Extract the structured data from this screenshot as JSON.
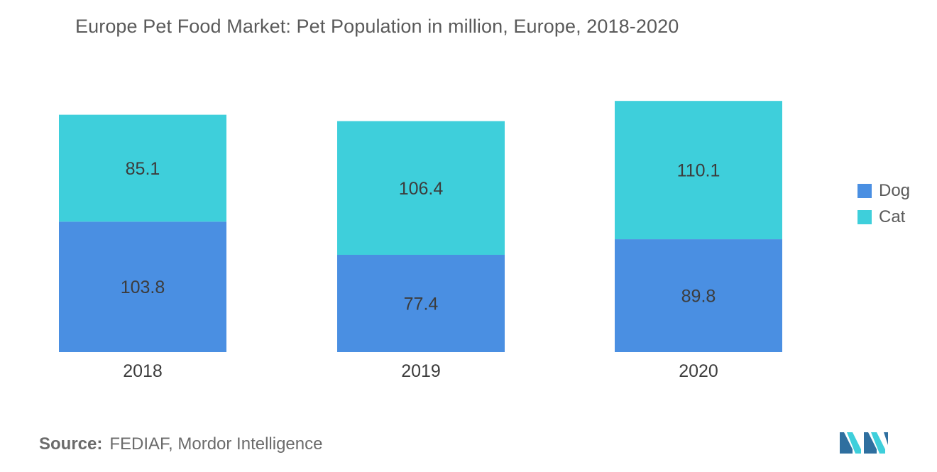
{
  "chart_data": {
    "type": "bar",
    "stacked": true,
    "title": "Europe Pet Food Market: Pet Population in million, Europe, 2018-2020",
    "categories": [
      "2018",
      "2019",
      "2020"
    ],
    "series": [
      {
        "name": "Dog",
        "values": [
          103.8,
          77.4,
          89.8
        ],
        "value_labels": [
          "103.8",
          "77.4",
          "89.8"
        ],
        "color": "#4a8fe2"
      },
      {
        "name": "Cat",
        "values": [
          85.1,
          106.4,
          110.1
        ],
        "value_labels": [
          "85.1",
          "106.4",
          "110.1"
        ],
        "color": "#3ecfdb"
      }
    ],
    "xlabel": "",
    "ylabel": "",
    "ylim": [
      0,
      200
    ],
    "grid": false,
    "legend_position": "right"
  },
  "source": {
    "label": "Source:",
    "text": "FEDIAF, Mordor Intelligence"
  },
  "colors": {
    "text": "#5a5a5a",
    "label_text": "#3c3c3c",
    "axis": "#d9d9d9",
    "logo_dark": "#2f6f9f",
    "logo_teal": "#3ecfdb"
  }
}
